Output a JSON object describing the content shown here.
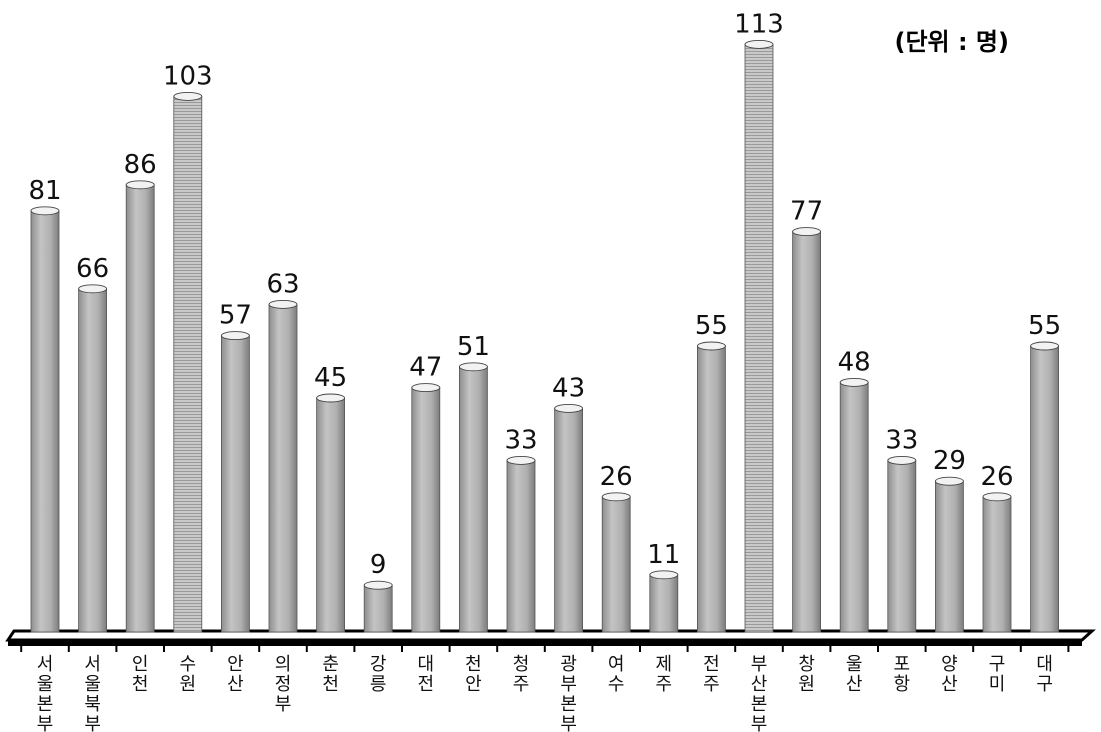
{
  "chart_data": {
    "type": "bar",
    "unit_label": "(단위 : 명)",
    "categories": [
      "서울본부",
      "서울북부",
      "인천",
      "수원",
      "안산",
      "의정부",
      "춘천",
      "강릉",
      "대전",
      "천안",
      "청주",
      "광부본부",
      "여수",
      "제주",
      "전주",
      "부산본부",
      "창원",
      "울산",
      "포항",
      "양산",
      "구미",
      "대구"
    ],
    "values": [
      81,
      66,
      86,
      103,
      57,
      63,
      45,
      9,
      47,
      51,
      33,
      43,
      26,
      11,
      55,
      113,
      77,
      48,
      33,
      29,
      26,
      55
    ],
    "highlighted": [
      "수원",
      "부산본부"
    ],
    "ylim": [
      0,
      120
    ],
    "colors": {
      "bar": "#b3b3b3",
      "bar_highlight": "#c8c8c8",
      "floor": "#000000"
    }
  }
}
